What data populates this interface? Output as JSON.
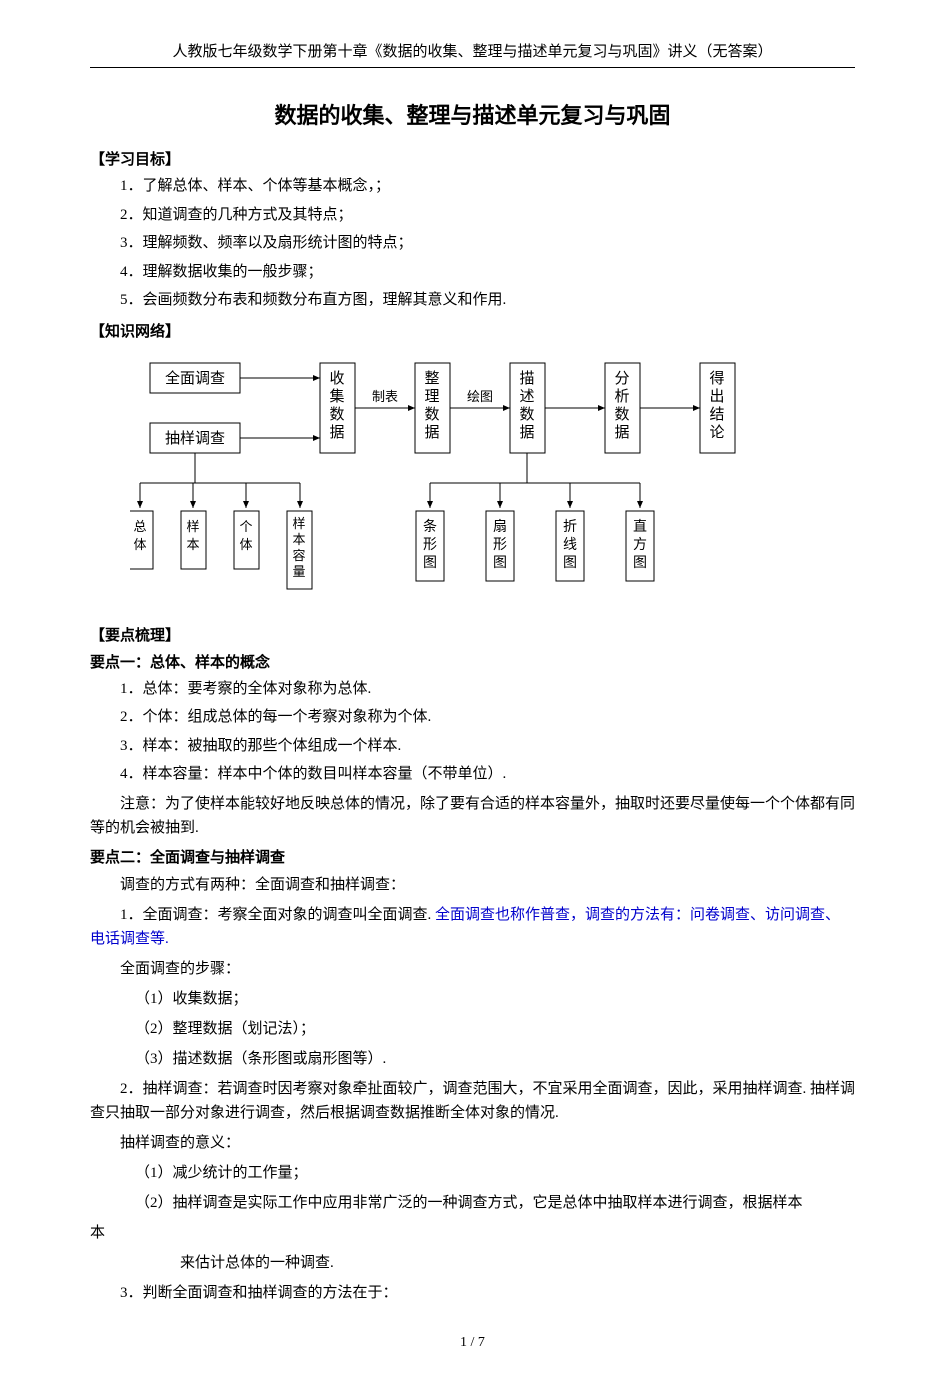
{
  "header": "人教版七年级数学下册第十章《数据的收集、整理与描述单元复习与巩固》讲义（无答案）",
  "title": "数据的收集、整理与描述单元复习与巩固",
  "sec1_head": "【学习目标】",
  "sec1_items": [
    "1．了解总体、样本、个体等基本概念，；",
    "2．知道调查的几种方式及其特点；",
    "3．理解频数、频率以及扇形统计图的特点；",
    "4．理解数据收集的一般步骤；",
    "5．会画频数分布表和频数分布直方图，理解其意义和作用."
  ],
  "sec2_head": "【知识网络】",
  "diagram": {
    "boxes": {
      "b1": "全面调查",
      "b2": "抽样调查",
      "b3": "收\n集\n数\n据",
      "b4": "整\n理\n数\n据",
      "b5": "描\n述\n数\n据",
      "b6": "分\n析\n数\n据",
      "b7": "得\n出\n结\n论",
      "c1": "总\n体",
      "c2": "样\n本",
      "c3": "个\n体",
      "c4": "样\n本\n容\n量",
      "d1": "条\n形\n图",
      "d2": "扇\n形\n图",
      "d3": "折\n线\n图",
      "d4": "直\n方\n图"
    },
    "labels": {
      "l1": "制表",
      "l2": "绘图"
    },
    "stroke": "#000000",
    "fontsize_box": 15,
    "fontsize_small": 13
  },
  "sec3_head": "【要点梳理】",
  "p1_head": "要点一：总体、样本的概念",
  "p1_items": [
    "1．总体：要考察的全体对象称为总体.",
    "2．个体：组成总体的每一个考察对象称为个体.",
    "3．样本：被抽取的那些个体组成一个样本.",
    "4．样本容量：样本中个体的数目叫样本容量（不带单位）."
  ],
  "p1_note": "注意：为了使样本能较好地反映总体的情况，除了要有合适的样本容量外，抽取时还要尽量使每一个个体都有同等的机会被抽到.",
  "p2_head": "要点二：全面调查与抽样调查",
  "p2_intro": "调查的方式有两种：全面调查和抽样调查：",
  "p2_1a": "1．全面调查：考察全面对象的调查叫全面调查. ",
  "p2_1b": "全面调查也称作普查，调查的方法有：问卷调查、访问调查、电话调查等.",
  "p2_steps_head": "全面调查的步骤：",
  "p2_steps": [
    "（1）收集数据；",
    "（2）整理数据（划记法）；",
    "（3）描述数据（条形图或扇形图等）."
  ],
  "p2_2": "2．抽样调查：若调查时因考察对象牵扯面较广，调查范围大，不宜采用全面调查，因此，采用抽样调查. 抽样调查只抽取一部分对象进行调查，然后根据调查数据推断全体对象的情况.",
  "p2_meaning_head": "抽样调查的意义：",
  "p2_meanings": [
    "（1）减少统计的工作量；",
    "（2）抽样调查是实际工作中应用非常广泛的一种调查方式，它是总体中抽取样本进行调查，根据样本"
  ],
  "p2_tail": "来估计总体的一种调查.",
  "p2_3": "3．判断全面调查和抽样调查的方法在于：",
  "footer": "1 / 7"
}
